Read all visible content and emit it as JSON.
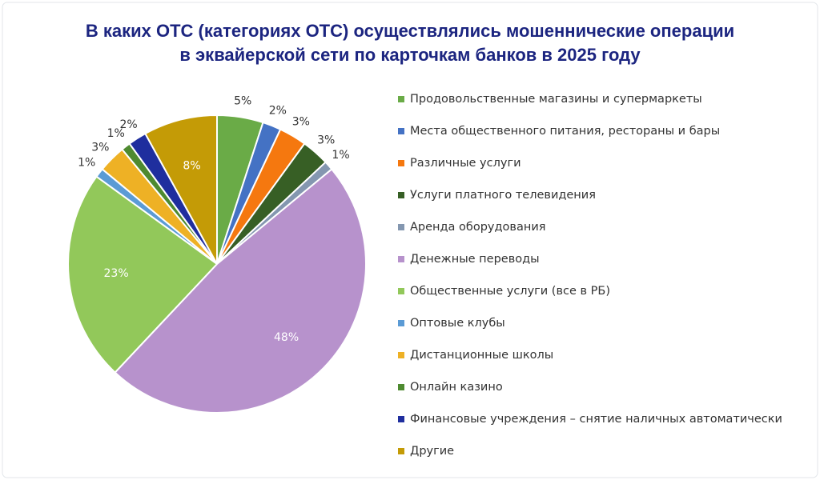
{
  "chart_data": {
    "type": "pie",
    "title": [
      "В каких ОТС (категориях ОТС) осуществлялись мошеннические операции",
      "в эквайерской сети по карточкам банков в 2025 году"
    ],
    "categories": [
      "Продовольственные магазины и супермаркеты",
      "Места общественного питания, рестораны и бары",
      "Различные услуги",
      "Услуги платного телевидения",
      "Аренда оборудования",
      "Денежные переводы",
      "Общественные услуги (все в РБ)",
      "Оптовые клубы",
      "Дистанционные школы",
      "Онлайн казино",
      "Финансовые учреждения – снятие наличных автоматически",
      "Другие"
    ],
    "values": [
      5,
      2,
      3,
      3,
      1,
      48,
      23,
      1,
      3,
      1,
      2,
      8
    ],
    "value_labels": [
      "5%",
      "2%",
      "3%",
      "3%",
      "1%",
      "48%",
      "23%",
      "1%",
      "3%",
      "1%",
      "2%",
      "8%"
    ],
    "colors": [
      "#6aab47",
      "#4472c4",
      "#f5780f",
      "#375f25",
      "#8497b0",
      "#b792cc",
      "#92c85a",
      "#5b9bd5",
      "#eeb125",
      "#4e8a30",
      "#1f2e9e",
      "#c49b06"
    ],
    "legend": "right"
  }
}
